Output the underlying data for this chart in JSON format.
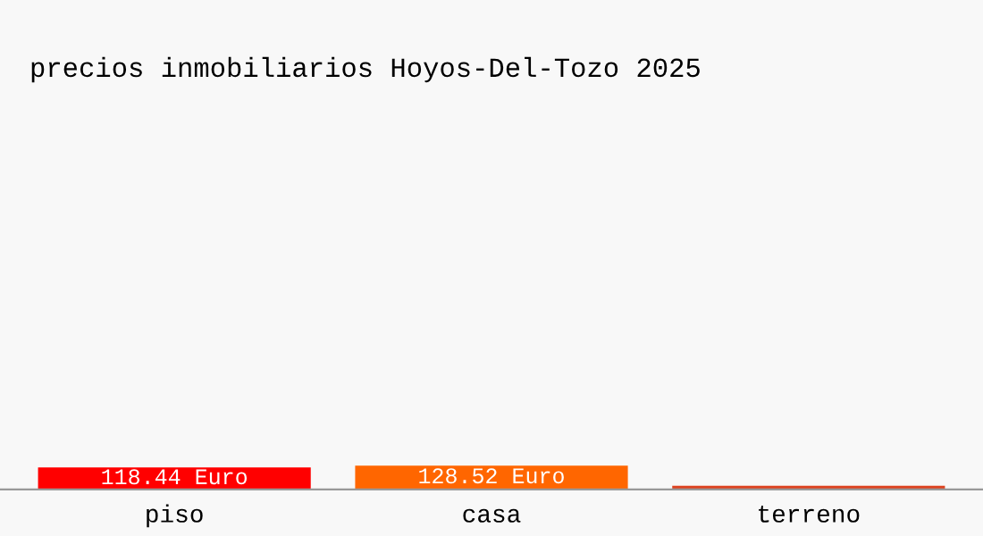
{
  "chart_data": {
    "type": "bar",
    "title": "precios inmobiliarios Hoyos-Del-Tozo 2025",
    "categories": [
      "piso",
      "casa",
      "terreno"
    ],
    "values": [
      118.44,
      128.52,
      20
    ],
    "value_labels": [
      "118.44 Euro",
      "128.52 Euro",
      null
    ],
    "colors": [
      "#ff0000",
      "#ff6600",
      "#dd4422"
    ],
    "grid": false,
    "legend": false
  }
}
